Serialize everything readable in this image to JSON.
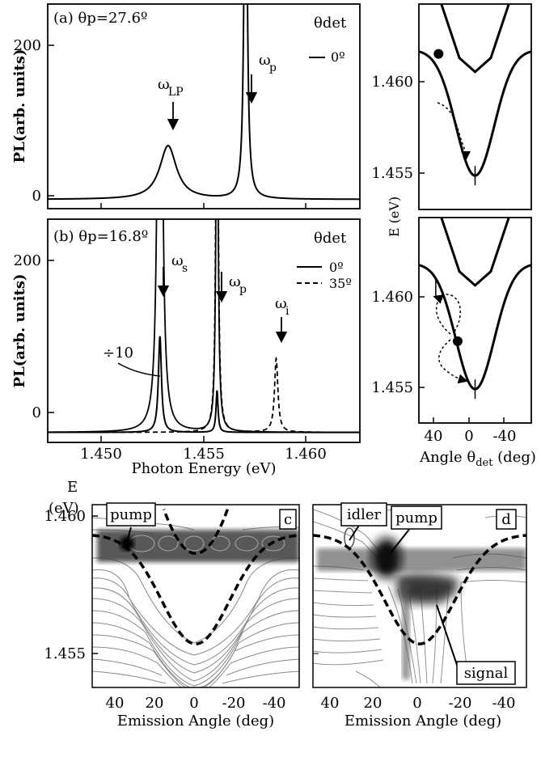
{
  "chart_data": [
    {
      "panel": "a",
      "type": "line",
      "label": "(a) θp=27.6º",
      "ylabel": "PL(arb. units)",
      "xlim": [
        1.448,
        1.4633
      ],
      "ylim": [
        -12,
        255
      ],
      "yticks": [
        "0",
        "200"
      ],
      "legend_title": "θdet",
      "legend_position": "top-right",
      "series": [
        {
          "name": "0º",
          "style": "solid",
          "peaks": [
            {
              "x": 1.4539,
              "height": 70,
              "width": 0.0005
            },
            {
              "x": 1.4577,
              "height": 600,
              "width": 8e-05
            }
          ]
        }
      ],
      "annotations": [
        {
          "text": "ωLP",
          "main": "ω",
          "sub": "LP",
          "x": 1.4539,
          "arrow_to_y": 85
        },
        {
          "text": "ωp",
          "main": "ω",
          "sub": "p",
          "x": 1.4577,
          "arrow_to_y": 118
        }
      ]
    },
    {
      "panel": "b",
      "type": "line",
      "label": "(b) θp=16.8º",
      "ylabel": "PL(arb. units)",
      "xlabel": "Photon Energy (eV)",
      "xlim": [
        1.448,
        1.4633
      ],
      "ylim": [
        -12,
        255
      ],
      "xticks": [
        "1.450",
        "1.455",
        "1.460"
      ],
      "yticks": [
        "0",
        "200"
      ],
      "legend_title": "θdet",
      "legend_position": "top-right",
      "series": [
        {
          "name": "0º",
          "style": "solid",
          "peaks": [
            {
              "x": 1.4535,
              "height": 115,
              "width": 9e-05
            },
            {
              "x": 1.4563,
              "height": 50,
              "width": 6e-05
            }
          ]
        },
        {
          "name": "0º ×10",
          "style": "solid",
          "peaks": [
            {
              "x": 1.4535,
              "height": 1150,
              "width": 9e-05
            },
            {
              "x": 1.4563,
              "height": 500,
              "width": 6e-05
            }
          ]
        },
        {
          "name": "35º",
          "style": "dashed",
          "peaks": [
            {
              "x": 1.4563,
              "height": 600,
              "width": 6e-05
            },
            {
              "x": 1.4592,
              "height": 88,
              "width": 0.0001
            }
          ]
        }
      ],
      "annotations": [
        {
          "text": "ωs",
          "main": "ω",
          "sub": "s",
          "x": 1.4535,
          "arrow_to_y": 145
        },
        {
          "text": "ωp",
          "main": "ω",
          "sub": "p",
          "x": 1.4563,
          "arrow_to_y": 135
        },
        {
          "text": "ωi",
          "main": "ω",
          "sub": "i",
          "x": 1.4592,
          "arrow_to_y": 100
        },
        {
          "text": "÷10"
        }
      ]
    },
    {
      "panel": "dispersion-top",
      "type": "line",
      "xlim": [
        50,
        -50
      ],
      "ylim": [
        1.4532,
        1.4635
      ],
      "yticks": [
        "1.455",
        "1.460"
      ],
      "ylabel": "E (eV)",
      "series": [
        {
          "name": "lower polariton",
          "style": "solid",
          "base": 1.4549,
          "depth": 0.0063,
          "width": 17
        },
        {
          "name": "upper polariton",
          "style": "solid",
          "points": [
            [
              30,
              1.4635
            ],
            [
              14,
              1.4608
            ],
            [
              0,
              1.4601
            ],
            [
              -14,
              1.4608
            ],
            [
              -30,
              1.4635
            ]
          ]
        }
      ],
      "markers": [
        {
          "type": "dot",
          "x": 32.5,
          "y": 1.461
        },
        {
          "type": "tick",
          "x": 0,
          "y": 1.4549
        }
      ]
    },
    {
      "panel": "dispersion-bottom",
      "type": "line",
      "xlim": [
        50,
        -50
      ],
      "ylim": [
        1.4532,
        1.4635
      ],
      "xticks": [
        "40",
        "0",
        "-40"
      ],
      "yticks": [
        "1.455",
        "1.460"
      ],
      "xlabel": "Angle θdet (deg)",
      "series": [
        {
          "name": "lower polariton",
          "style": "solid",
          "base": 1.4549,
          "depth": 0.0063,
          "width": 17
        },
        {
          "name": "upper polariton",
          "style": "solid",
          "points": [
            [
              30,
              1.4635
            ],
            [
              14,
              1.4608
            ],
            [
              0,
              1.4601
            ],
            [
              -14,
              1.4608
            ],
            [
              -30,
              1.4635
            ]
          ]
        }
      ],
      "markers": [
        {
          "type": "dot",
          "x": 15.5,
          "y": 1.4573
        },
        {
          "type": "tick",
          "x": 35,
          "y": 1.46
        },
        {
          "type": "tick",
          "x": 0,
          "y": 1.4549
        }
      ]
    },
    {
      "panel": "c",
      "type": "heatmap",
      "label": "c",
      "xlim": [
        52,
        -52
      ],
      "ylim": [
        1.4524,
        1.4629
      ],
      "xticks": [
        "40",
        "20",
        "0",
        "-20",
        "-40"
      ],
      "yticks": [
        "1.455",
        "1.460"
      ],
      "ylabel": "E (eV)",
      "xlabel": "Emission Angle (deg)",
      "callouts": [
        "pump"
      ]
    },
    {
      "panel": "d",
      "type": "heatmap",
      "label": "d",
      "xlim": [
        52,
        -52
      ],
      "ylim": [
        1.4524,
        1.4629
      ],
      "xticks": [
        "40",
        "20",
        "0",
        "-20",
        "-40"
      ],
      "xlabel": "Emission Angle (deg)",
      "callouts": [
        "idler",
        "pump",
        "signal"
      ]
    }
  ]
}
